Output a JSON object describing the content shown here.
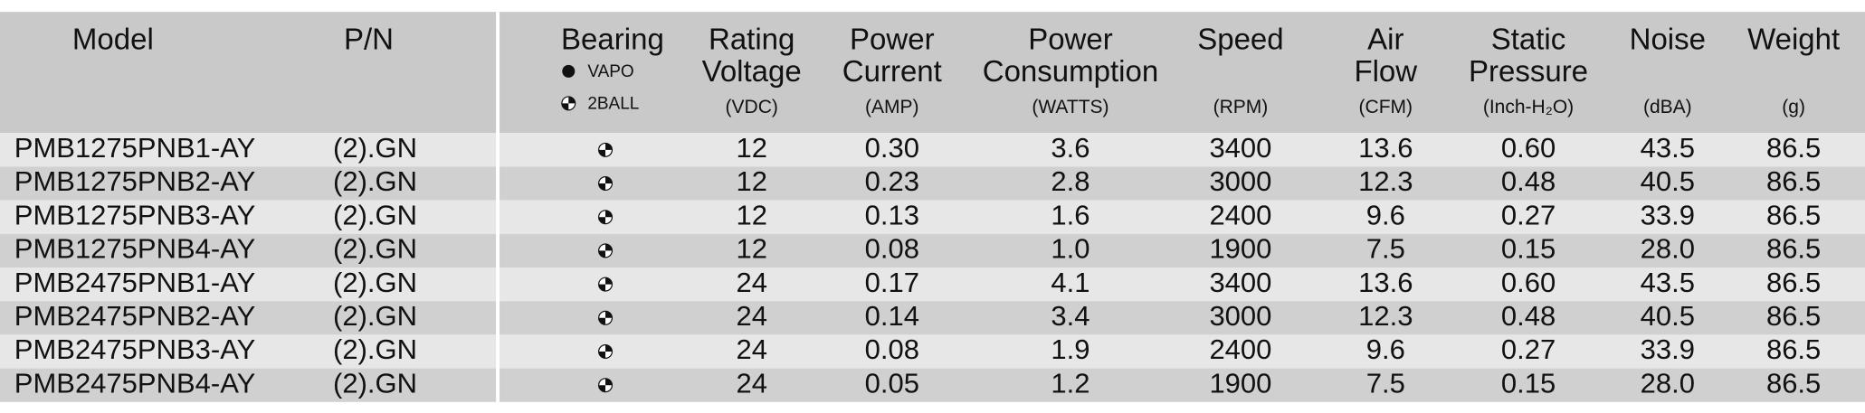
{
  "header": {
    "columns": [
      {
        "lines": [
          "Model"
        ]
      },
      {
        "lines": [
          "P/N"
        ]
      },
      {
        "lines": [
          "Bearing"
        ]
      },
      {
        "lines": [
          "Rating",
          "Voltage"
        ],
        "unit": "(VDC)"
      },
      {
        "lines": [
          "Power",
          "Current"
        ],
        "unit": "(AMP)"
      },
      {
        "lines": [
          "Power",
          "Consumption"
        ],
        "unit": "(WATTS)"
      },
      {
        "lines": [
          "Speed"
        ],
        "unit": "(RPM)"
      },
      {
        "lines": [
          "Air",
          "Flow"
        ],
        "unit": "(CFM)"
      },
      {
        "lines": [
          "Static",
          "Pressure"
        ],
        "unit": "(Inch-H₂O)"
      },
      {
        "lines": [
          "Noise"
        ],
        "unit": "(dBA)"
      },
      {
        "lines": [
          "Weight"
        ],
        "unit": "(g)"
      }
    ],
    "legend": [
      "VAPO",
      "2BALL"
    ]
  },
  "table": {
    "rows": [
      [
        "PMB1275PNB1-AY",
        "(2).GN",
        "12",
        "0.30",
        "3.6",
        "3400",
        "13.6",
        "0.60",
        "43.5",
        "86.5"
      ],
      [
        "PMB1275PNB2-AY",
        "(2).GN",
        "12",
        "0.23",
        "2.8",
        "3000",
        "12.3",
        "0.48",
        "40.5",
        "86.5"
      ],
      [
        "PMB1275PNB3-AY",
        "(2).GN",
        "12",
        "0.13",
        "1.6",
        "2400",
        "9.6",
        "0.27",
        "33.9",
        "86.5"
      ],
      [
        "PMB1275PNB4-AY",
        "(2).GN",
        "12",
        "0.08",
        "1.0",
        "1900",
        "7.5",
        "0.15",
        "28.0",
        "86.5"
      ],
      [
        "PMB2475PNB1-AY",
        "(2).GN",
        "24",
        "0.17",
        "4.1",
        "3400",
        "13.6",
        "0.60",
        "43.5",
        "86.5"
      ],
      [
        "PMB2475PNB2-AY",
        "(2).GN",
        "24",
        "0.14",
        "3.4",
        "3000",
        "12.3",
        "0.48",
        "40.5",
        "86.5"
      ],
      [
        "PMB2475PNB3-AY",
        "(2).GN",
        "24",
        "0.08",
        "1.9",
        "2400",
        "9.6",
        "0.27",
        "33.9",
        "86.5"
      ],
      [
        "PMB2475PNB4-AY",
        "(2).GN",
        "24",
        "0.05",
        "1.2",
        "1900",
        "7.5",
        "0.15",
        "28.0",
        "86.5"
      ]
    ]
  }
}
